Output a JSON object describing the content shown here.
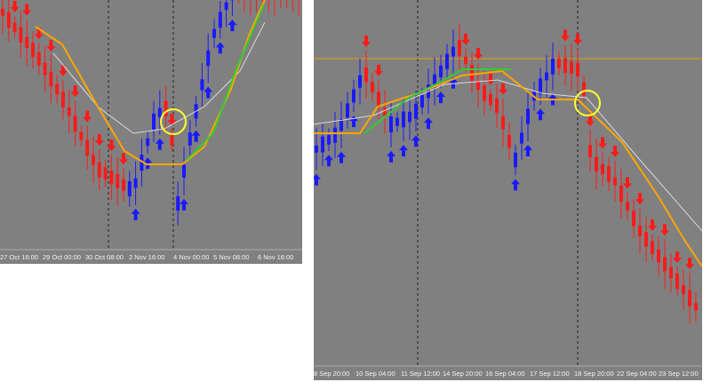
{
  "panels": [
    {
      "x_labels": [
        "27 Oct 16:00",
        "29 Oct 00:00",
        "30 Oct 08:00",
        "2 Nov 16:00",
        "4 Nov 00:00",
        "5 Nov 08:00",
        "6 Nov 16:00"
      ]
    },
    {
      "x_labels": [
        "8 Sep 20:00",
        "10 Sep 04:00",
        "11 Sep 12:00",
        "14 Sep 20:00",
        "16 Sep 04:00",
        "17 Sep 12:00",
        "18 Sep 20:00",
        "22 Sep 04:00",
        "23 Sep 12:00"
      ]
    }
  ]
}
